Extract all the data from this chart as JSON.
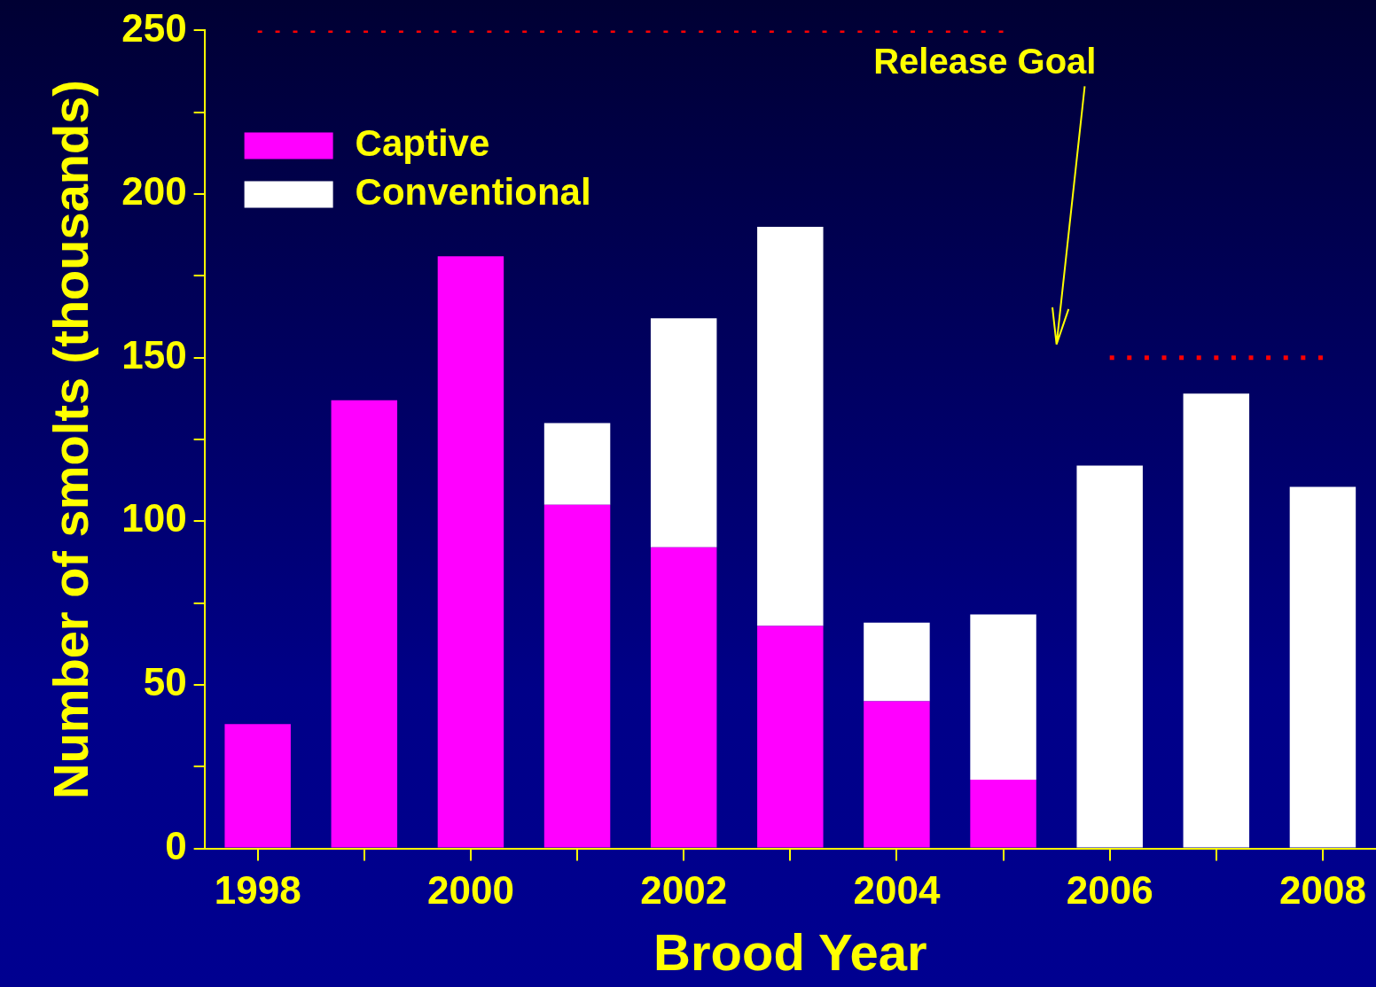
{
  "chart_data": {
    "type": "bar",
    "xlabel": "Brood Year",
    "ylabel": "Number of smolts (thousands)",
    "categories": [
      "1998",
      null,
      "2000",
      null,
      "2002",
      null,
      "2004",
      null,
      "2006",
      null,
      "2008"
    ],
    "stacked": true,
    "series": [
      {
        "name": "Captive",
        "color": "#ff00ff",
        "values": [
          38,
          137,
          181,
          105,
          92,
          68,
          45,
          21,
          0,
          0,
          0
        ]
      },
      {
        "name": "Conventional",
        "color": "#ffffff",
        "values": [
          0,
          0,
          0,
          25,
          70,
          122,
          24,
          50.5,
          117,
          139,
          110.5
        ]
      },
      {
        "type": "line",
        "color": "#ff0000",
        "line_style": "dotted",
        "marker": "none",
        "values": [
          250,
          250,
          250,
          250,
          250,
          250,
          250,
          250,
          null,
          null,
          null
        ]
      },
      {
        "type": "line",
        "color": "#ff0000",
        "line_style": "dotted",
        "marker": "none",
        "values": [
          null,
          null,
          null,
          null,
          null,
          null,
          null,
          null,
          150,
          150,
          150
        ]
      }
    ],
    "ylim": [
      0,
      250
    ],
    "yticks": [
      0,
      {
        "value": 25,
        "label": null
      },
      50,
      {
        "value": 75,
        "label": null
      },
      100,
      {
        "value": 125,
        "label": null
      },
      150,
      {
        "value": 175,
        "label": null
      },
      200,
      {
        "value": 225,
        "label": null
      },
      250
    ],
    "annotations": [
      "Release Goal"
    ],
    "grid": false,
    "legend": "top left"
  }
}
